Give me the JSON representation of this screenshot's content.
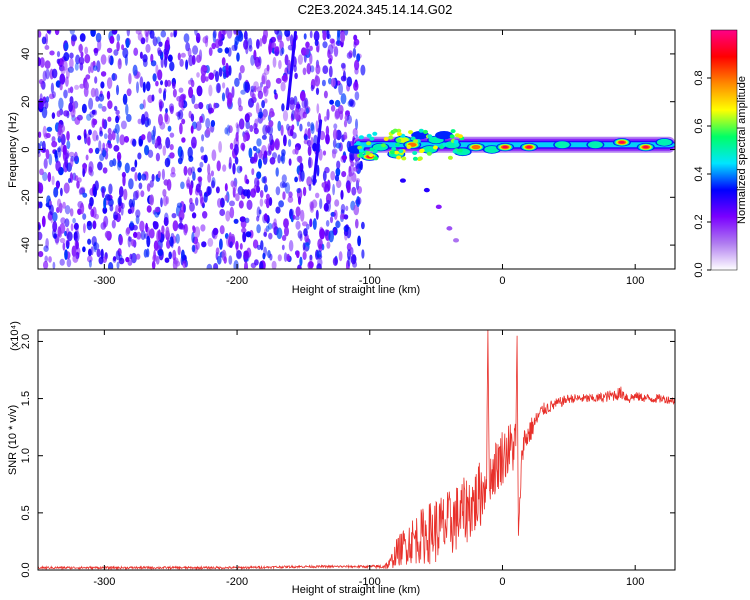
{
  "chart_data": [
    {
      "type": "heatmap",
      "title": "C2E3.2024.345.14.14.G02",
      "xlabel": "Height of straight line (km)",
      "ylabel": "Frequency (Hz)",
      "xlim": [
        -350,
        130
      ],
      "ylim": [
        -50,
        50
      ],
      "xticks": [
        -300,
        -200,
        -100,
        0,
        100
      ],
      "xtick_labels": [
        "-300",
        "-200",
        "-100",
        "0",
        "100"
      ],
      "yticks": [
        -40,
        -20,
        0,
        20,
        40
      ],
      "ytick_labels": [
        "-40",
        "-20",
        "0",
        "20",
        "40"
      ],
      "colorbar": {
        "label": "Normalized spectral amplitude",
        "range": [
          0,
          1
        ],
        "ticks": [
          0.0,
          0.2,
          0.4,
          0.6,
          0.8
        ],
        "tick_labels": [
          "0.0",
          "0.2",
          "0.4",
          "0.6",
          "0.8"
        ],
        "colors": [
          "#ffffff",
          "#b07cf0",
          "#7a00ff",
          "#0000ff",
          "#00e5ff",
          "#00ff66",
          "#ffff00",
          "#ff8800",
          "#ff0000",
          "#ff0088"
        ]
      },
      "noise_region": {
        "x_range": [
          -350,
          -105
        ],
        "level": 0.15
      },
      "streaks": [
        {
          "x": [
            -162,
            -156
          ],
          "y": [
            17,
            49
          ]
        },
        {
          "x": [
            -142,
            -137
          ],
          "y": [
            -14,
            12
          ]
        }
      ],
      "features": [
        {
          "x": -110,
          "y": 0,
          "level": 0.4
        },
        {
          "x": -100,
          "y": -3,
          "level": 0.95
        },
        {
          "x": -92,
          "y": 1,
          "level": 0.5
        },
        {
          "x": -80,
          "y": -2,
          "level": 0.6
        },
        {
          "x": -75,
          "y": 4,
          "level": 0.7
        },
        {
          "x": -68,
          "y": 2,
          "level": 0.8
        },
        {
          "x": -62,
          "y": 6,
          "level": 0.4
        },
        {
          "x": -55,
          "y": 0,
          "level": 0.6
        },
        {
          "x": -50,
          "y": 4,
          "level": 0.5
        },
        {
          "x": -44,
          "y": 6,
          "level": 0.45
        },
        {
          "x": -38,
          "y": 2,
          "level": 0.55
        },
        {
          "x": -30,
          "y": -1,
          "level": 0.6
        },
        {
          "x": -20,
          "y": 1,
          "level": 0.8
        },
        {
          "x": -8,
          "y": 0,
          "level": 0.6
        },
        {
          "x": 2,
          "y": 1,
          "level": 0.95
        },
        {
          "x": 20,
          "y": 1,
          "level": 0.95
        },
        {
          "x": 45,
          "y": 2,
          "level": 0.6
        },
        {
          "x": 70,
          "y": 2,
          "level": 0.5
        },
        {
          "x": 90,
          "y": 3,
          "level": 0.95
        },
        {
          "x": 108,
          "y": 1,
          "level": 0.95
        },
        {
          "x": 122,
          "y": 3,
          "level": 0.5
        }
      ],
      "tail_blobs": [
        {
          "x": -75,
          "y": -13,
          "level": 0.3
        },
        {
          "x": -57,
          "y": -17,
          "level": 0.3
        },
        {
          "x": -48,
          "y": -24,
          "level": 0.2
        },
        {
          "x": -40,
          "y": -33,
          "level": 0.15
        },
        {
          "x": -35,
          "y": -38,
          "level": 0.12
        }
      ]
    },
    {
      "type": "line",
      "title": "",
      "xlabel": "Height of straight line (km)",
      "ylabel": "SNR (10 * v/v)",
      "scale_note": "(x10⁴)",
      "xlim": [
        -350,
        130
      ],
      "ylim": [
        0,
        2.1
      ],
      "xticks": [
        -300,
        -200,
        -100,
        0,
        100
      ],
      "xtick_labels": [
        "-300",
        "-200",
        "-100",
        "0",
        "100"
      ],
      "yticks": [
        0.0,
        0.5,
        1.0,
        1.5,
        2.0
      ],
      "ytick_labels": [
        "0.0",
        "0.5",
        "1.0",
        "1.5",
        "2.0"
      ],
      "series": [
        {
          "name": "SNR",
          "color": "#e8302a",
          "x": [
            -350,
            -300,
            -250,
            -200,
            -150,
            -100,
            -90,
            -85,
            -80,
            -70,
            -60,
            -50,
            -40,
            -30,
            -20,
            -15,
            -12,
            -11,
            -10,
            -5,
            0,
            5,
            10,
            11,
            12,
            15,
            20,
            25,
            30,
            40,
            50,
            60,
            70,
            80,
            90,
            95,
            100,
            110,
            120,
            130
          ],
          "values": [
            0.02,
            0.02,
            0.02,
            0.02,
            0.03,
            0.03,
            0.03,
            0.05,
            0.15,
            0.25,
            0.3,
            0.35,
            0.4,
            0.5,
            0.6,
            0.7,
            0.8,
            2.1,
            0.8,
            0.9,
            1.0,
            1.05,
            1.1,
            2.05,
            0.3,
            1.1,
            1.2,
            1.3,
            1.4,
            1.45,
            1.5,
            1.5,
            1.5,
            1.52,
            1.55,
            1.5,
            1.52,
            1.5,
            1.5,
            1.48
          ],
          "noise_amplitude": [
            0.01,
            0.01,
            0.01,
            0.01,
            0.01,
            0.01,
            0.02,
            0.05,
            0.12,
            0.2,
            0.25,
            0.3,
            0.3,
            0.3,
            0.3,
            0.3,
            0.2,
            0,
            0.2,
            0.25,
            0.25,
            0.25,
            0.25,
            0,
            0,
            0.15,
            0.12,
            0.08,
            0.06,
            0.05,
            0.04,
            0.04,
            0.04,
            0.05,
            0.06,
            0.05,
            0.04,
            0.04,
            0.04,
            0.03
          ]
        }
      ]
    }
  ]
}
